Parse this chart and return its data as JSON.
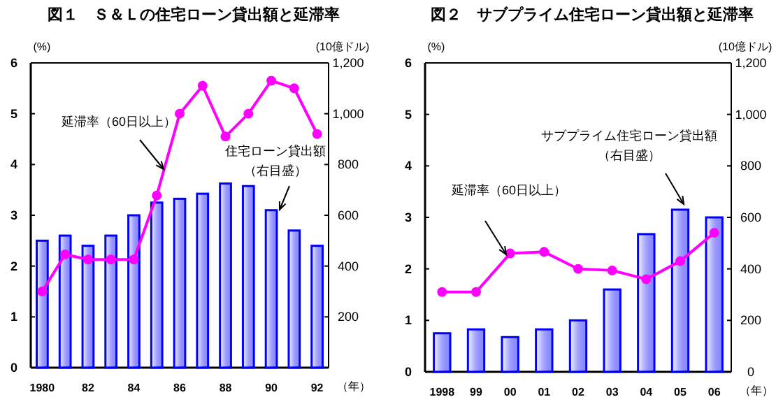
{
  "chart_data": [
    {
      "type": "bar",
      "title": "図１　Ｓ＆Ｌの住宅ローン貸出額と延滞率",
      "xlabel": "（年）",
      "ylabel": "(%)",
      "y2label": "(10億ドル)",
      "categories": [
        "1980",
        null,
        "82",
        null,
        "84",
        null,
        "86",
        null,
        "88",
        null,
        "90",
        null,
        "92"
      ],
      "series": [
        {
          "axis": "y2",
          "color": "#0000ff",
          "values": [
            500,
            520,
            480,
            520,
            600,
            650,
            665,
            685,
            725,
            715,
            620,
            540,
            480
          ]
        },
        {
          "type": "line",
          "axis": "y",
          "color": "#ff00ff",
          "values": [
            1.5,
            2.23,
            2.13,
            2.13,
            2.13,
            3.39,
            5.0,
            5.55,
            4.55,
            5.0,
            5.65,
            5.5,
            4.6
          ]
        }
      ],
      "marker": "circle",
      "ylim": [
        0,
        6
      ],
      "yticks": [
        0,
        1,
        2,
        3,
        4,
        5,
        6
      ],
      "y2lim": [
        0,
        1200
      ],
      "y2ticks": [
        {
          "value": 0,
          "label": null
        },
        200,
        400,
        600,
        800,
        {
          "value": 1000,
          "label": "1,000"
        },
        {
          "value": 1200,
          "label": "1,200"
        }
      ],
      "annotations": [
        "延滞率（60日以上）",
        "住宅ローン貸出額",
        "（右目盛）"
      ]
    },
    {
      "type": "bar",
      "title": "図２　サブプライム住宅ローン貸出額と延滞率",
      "xlabel": "（年）",
      "ylabel": "(%)",
      "y2label": "(10億ドル)",
      "categories": [
        "1998",
        "99",
        "00",
        "01",
        "02",
        "03",
        "04",
        "05",
        "06"
      ],
      "series": [
        {
          "axis": "y2",
          "color": "#0000ff",
          "values": [
            150,
            165,
            135,
            165,
            200,
            320,
            535,
            630,
            600
          ]
        },
        {
          "type": "line",
          "axis": "y",
          "color": "#ff00ff",
          "values": [
            1.55,
            1.55,
            2.3,
            2.33,
            2.0,
            1.97,
            1.8,
            2.15,
            2.7
          ]
        }
      ],
      "marker": "circle",
      "ylim": [
        0,
        6
      ],
      "yticks": [
        0,
        1,
        2,
        3,
        4,
        5,
        6
      ],
      "y2lim": [
        0,
        1200
      ],
      "y2ticks": [
        0,
        200,
        400,
        600,
        800,
        {
          "value": 1000,
          "label": "1,000"
        },
        {
          "value": 1200,
          "label": "1,200"
        }
      ],
      "annotations": [
        "延滞率（60日以上）",
        "サブプライム住宅ローン貸出額",
        "（右目盛）"
      ]
    }
  ]
}
